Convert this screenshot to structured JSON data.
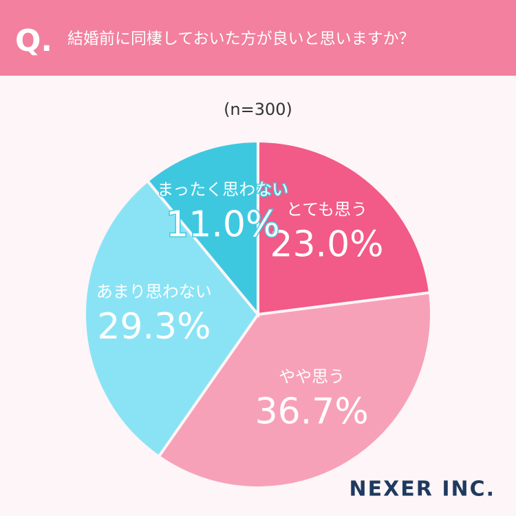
{
  "chart_data": {
    "type": "pie",
    "question_label": "Q.",
    "title": "結婚前に同棲しておいた方が良いと思いますか？",
    "subtitle": "(n=300)",
    "categories": [
      "とても思う",
      "やや思う",
      "あまり思わない",
      "まったく思わない"
    ],
    "values": [
      23.0,
      36.7,
      29.3,
      11.0
    ],
    "value_labels": [
      "23.0%",
      "36.7%",
      "29.3%",
      "11.0%"
    ],
    "colors": [
      "#f25a87",
      "#f7a1b8",
      "#8ae3f5",
      "#3ec8e0"
    ],
    "logo": "NEXER INC."
  }
}
